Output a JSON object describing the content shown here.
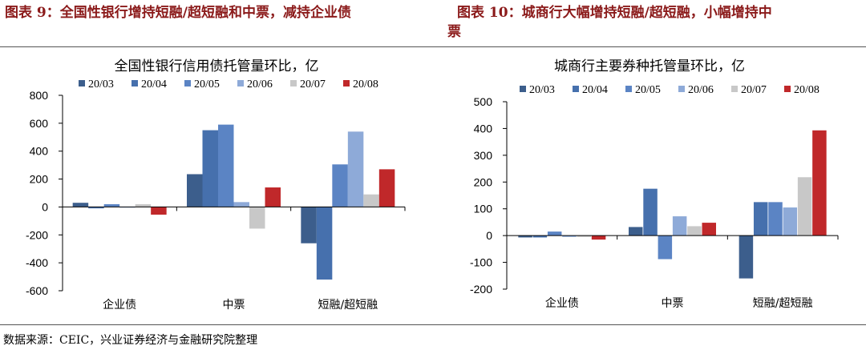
{
  "header": {
    "left_title": "图表 9：全国性银行增持短融/超短融和中票，减持企业债",
    "right_title": "图表 10：城商行大幅增持短融/超短融，小幅增持中",
    "right_title_wrap": "票"
  },
  "footer": {
    "source": "数据来源：CEIC，兴业证券经济与金融研究院整理"
  },
  "colors": {
    "series": [
      "#3c5e8c",
      "#4670ad",
      "#5b84c4",
      "#8eaad8",
      "#c8c8c8",
      "#c0282a"
    ]
  },
  "chart_data": [
    {
      "type": "bar",
      "title": "全国性银行信用债托管量环比，亿",
      "categories": [
        "企业债",
        "中票",
        "短融/超短融"
      ],
      "ylim": [
        -600,
        800
      ],
      "yticks": [
        -600,
        -400,
        -200,
        0,
        200,
        400,
        600,
        800
      ],
      "legend_position": "top",
      "series": [
        {
          "name": "20/03",
          "values": [
            30,
            235,
            -260
          ]
        },
        {
          "name": "20/04",
          "values": [
            -10,
            550,
            -520
          ]
        },
        {
          "name": "20/05",
          "values": [
            20,
            590,
            305
          ]
        },
        {
          "name": "20/06",
          "values": [
            0,
            35,
            540
          ]
        },
        {
          "name": "20/07",
          "values": [
            20,
            -155,
            90
          ]
        },
        {
          "name": "20/08",
          "values": [
            -55,
            140,
            270
          ]
        }
      ]
    },
    {
      "type": "bar",
      "title": "城商行主要券种托管量环比，亿",
      "categories": [
        "企业债",
        "中票",
        "短融/超短融"
      ],
      "ylim": [
        -200,
        500
      ],
      "yticks": [
        -200,
        -100,
        0,
        100,
        200,
        300,
        400,
        500
      ],
      "legend_position": "top",
      "series": [
        {
          "name": "20/03",
          "values": [
            -7,
            32,
            -160
          ]
        },
        {
          "name": "20/04",
          "values": [
            -7,
            175,
            125
          ]
        },
        {
          "name": "20/05",
          "values": [
            15,
            -88,
            125
          ]
        },
        {
          "name": "20/06",
          "values": [
            -5,
            72,
            105
          ]
        },
        {
          "name": "20/07",
          "values": [
            -5,
            35,
            218
          ]
        },
        {
          "name": "20/08",
          "values": [
            -15,
            48,
            393
          ]
        }
      ]
    }
  ]
}
